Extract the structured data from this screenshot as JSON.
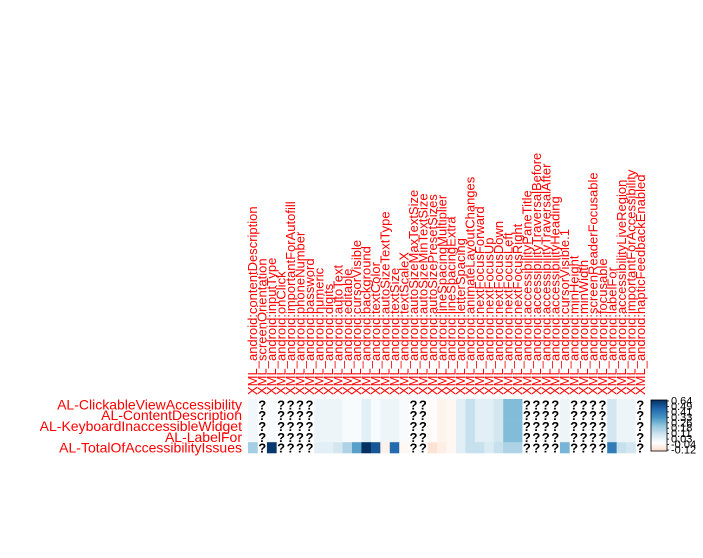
{
  "chart_data": {
    "type": "heatmap",
    "title": "",
    "rows": [
      "AL-ClickableViewAccessibility",
      "AL-ContentDescription",
      "AL-KeyboardInaccessibleWidget",
      "AL-LabelFor",
      "AL-TotalOfAccessibilityIssues"
    ],
    "columns": [
      "XML_android:contentDescription",
      "XML_screenOrientation",
      "XML_android:inputType",
      "XML_android:onClick",
      "XML_android:importantForAutofill",
      "XML_android:phoneNumber",
      "XML_android:password",
      "XML_android:numeric",
      "XML_android:digits",
      "XML_android:autoText",
      "XML_android:editable",
      "XML_android:cursorVisible",
      "XML_android:background",
      "XML_android:textColor",
      "XML_android:autoSizeTextType",
      "XML_android:textSize",
      "XML_android:textScaleX",
      "XML_android:autoSizeMaxTextSize",
      "XML_android:autoSizeMinTextSize",
      "XML_android:autoSizePresetSizes",
      "XML_android:lineSpacingMultiplier",
      "XML_android:lineSpacingExtra",
      "XML_android:letterSpacing",
      "XML_android:animateLayoutChanges",
      "XML_android:nextFocusForward",
      "XML_android:nextFocusUp",
      "XML_android:nextFocusDown",
      "XML_android:nextFocusLeft",
      "XML_android:nextFocusRight",
      "XML_android:accessibilityPaneTitle",
      "XML_android:accessibilityTraversalBefore",
      "XML_android:accessibilityTraversalAfter",
      "XML_android:accessibilityHeading",
      "XML_android:cursorVisible.1",
      "XML_android:minHeight",
      "XML_android:minWidth",
      "XML_android:screenReaderFocusable",
      "XML_android:focusable",
      "XML_android:labelFor",
      "XML_android:accessibilityLiveRegion",
      "XML_android:importantForAccessibility",
      "XML_android:hapticFeedbackEnabled"
    ],
    "missing_symbol": "?",
    "values": [
      [
        0.04,
        null,
        0.02,
        null,
        null,
        null,
        null,
        0.05,
        0.05,
        0.05,
        0.02,
        0.02,
        0.08,
        0.02,
        0.05,
        0.05,
        0.02,
        null,
        null,
        -0.01,
        -0.04,
        -0.03,
        0.08,
        0.15,
        0.08,
        0.08,
        0.12,
        0.28,
        0.28,
        null,
        null,
        null,
        null,
        0.05,
        null,
        null,
        null,
        null,
        0.12,
        0.05,
        0.05,
        null
      ],
      [
        0.04,
        null,
        0.02,
        null,
        null,
        null,
        null,
        0.05,
        0.05,
        0.05,
        0.02,
        0.02,
        0.08,
        0.02,
        0.05,
        0.05,
        0.02,
        null,
        null,
        -0.01,
        -0.04,
        -0.03,
        0.08,
        0.15,
        0.08,
        0.08,
        0.12,
        0.28,
        0.28,
        null,
        null,
        null,
        null,
        0.05,
        null,
        null,
        null,
        null,
        0.12,
        0.05,
        0.05,
        null
      ],
      [
        0.04,
        null,
        0.02,
        null,
        null,
        null,
        null,
        0.05,
        0.05,
        0.05,
        0.02,
        0.02,
        0.08,
        0.02,
        0.05,
        0.05,
        0.02,
        null,
        null,
        -0.01,
        -0.04,
        -0.03,
        0.08,
        0.15,
        0.08,
        0.08,
        0.12,
        0.28,
        0.28,
        null,
        null,
        null,
        null,
        0.05,
        null,
        null,
        null,
        null,
        0.12,
        0.05,
        0.05,
        null
      ],
      [
        0.04,
        null,
        0.02,
        null,
        null,
        null,
        null,
        0.05,
        0.05,
        0.05,
        0.02,
        0.02,
        0.08,
        0.02,
        0.05,
        0.05,
        0.02,
        null,
        null,
        -0.01,
        -0.04,
        -0.03,
        0.08,
        0.15,
        0.08,
        0.08,
        0.12,
        0.28,
        0.28,
        null,
        null,
        null,
        null,
        0.05,
        null,
        null,
        null,
        null,
        0.12,
        0.05,
        0.05,
        null
      ],
      [
        0.22,
        null,
        0.62,
        null,
        null,
        null,
        null,
        0.08,
        0.08,
        0.12,
        0.2,
        0.35,
        0.64,
        0.55,
        -0.05,
        0.5,
        -0.03,
        null,
        null,
        -0.1,
        -0.06,
        -0.03,
        0.08,
        0.15,
        0.15,
        0.1,
        0.15,
        0.2,
        0.2,
        null,
        null,
        null,
        null,
        0.3,
        null,
        null,
        null,
        null,
        0.45,
        0.15,
        0.12,
        null
      ]
    ],
    "legend": {
      "ticks": [
        "0.64",
        "0.49",
        "0.41",
        "0.33",
        "0.26",
        "0.18",
        "0.11",
        "0.03",
        "-0.04",
        "-0.12"
      ]
    },
    "colors": {
      "label": "#ff0000",
      "row_label": "#ff0000",
      "positive": "#053061",
      "neutral": "#ffffff",
      "negative": "#67001f"
    }
  }
}
